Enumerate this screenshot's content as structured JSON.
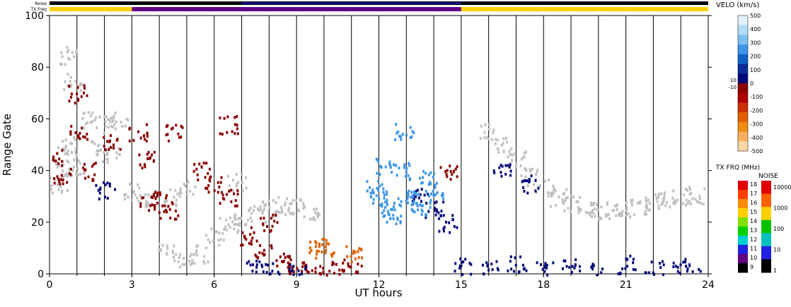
{
  "chart_data": {
    "type": "heatmap",
    "xlabel": "UT hours",
    "ylabel": "Range Gate",
    "xlim": [
      0,
      24
    ],
    "ylim": [
      0,
      100
    ],
    "x_ticks": [
      "0",
      "3",
      "6",
      "9",
      "12",
      "15",
      "18",
      "21",
      "24"
    ],
    "y_ticks": [
      "0",
      "20",
      "40",
      "60",
      "80",
      "100"
    ],
    "hour_gridlines": true,
    "top_bars": {
      "noise_label": "Noise",
      "txfreq_label": "TX Freq",
      "txfreq_segments": [
        {
          "start": 0,
          "end": 3,
          "freq_mhz": 15
        },
        {
          "start": 3,
          "end": 15,
          "freq_mhz": 10
        },
        {
          "start": 15,
          "end": 24,
          "freq_mhz": 15
        }
      ]
    },
    "velocity_scale": {
      "title": "VELO (km/s)",
      "ticks": [
        "500",
        "400",
        "300",
        "200",
        "100",
        "0",
        "-100",
        "-200",
        "-300",
        "-400",
        "-500"
      ],
      "small_ticks": [
        "10",
        "-10"
      ],
      "colors": [
        "#e0f0ff",
        "#b0dcf8",
        "#7cc0f0",
        "#3c96e8",
        "#1060c8",
        "#0a2a98",
        "#000a78",
        "#8c0000",
        "#b00000",
        "#cc3000",
        "#e06000",
        "#f08c10",
        "#f8b060",
        "#fcd8a8"
      ]
    },
    "txfreq_scale": {
      "title": "TX FRQ (MHz)",
      "ticks": [
        "18",
        "17",
        "16",
        "15",
        "14",
        "13",
        "12",
        "11",
        "10",
        "9"
      ],
      "colors": [
        "#e00000",
        "#ff4000",
        "#ff8c00",
        "#ffd000",
        "#80e000",
        "#00d000",
        "#00d0d0",
        "#2020e0",
        "#600080",
        "#000000"
      ]
    },
    "noise_scale": {
      "title": "NOISE",
      "ticks": [
        "10000",
        "1000",
        "100",
        "10",
        "1"
      ],
      "colors": [
        "#e00000",
        "#ff6000",
        "#ffd000",
        "#00c000",
        "#00c0c0",
        "#2020e0",
        "#000000"
      ]
    },
    "scatter_regions": [
      {
        "name": "ground-scatter",
        "color": "#c0c0c0",
        "points": [
          [
            0.3,
            35
          ],
          [
            0.5,
            40
          ],
          [
            0.6,
            50
          ],
          [
            0.8,
            45
          ],
          [
            1.0,
            42
          ],
          [
            1.5,
            60
          ],
          [
            2.0,
            58
          ],
          [
            2.5,
            60
          ],
          [
            1.8,
            50
          ],
          [
            2.2,
            46
          ],
          [
            3.0,
            32
          ],
          [
            3.5,
            30
          ],
          [
            4.5,
            30
          ],
          [
            5.0,
            33
          ],
          [
            4.3,
            10
          ],
          [
            4.8,
            6
          ],
          [
            5.5,
            8
          ],
          [
            6.0,
            15
          ],
          [
            6.5,
            20
          ],
          [
            7.0,
            22
          ],
          [
            7.5,
            24
          ],
          [
            8.0,
            26
          ],
          [
            8.5,
            27
          ],
          [
            9.0,
            26
          ],
          [
            9.5,
            24
          ],
          [
            6.8,
            36
          ],
          [
            16.0,
            55
          ],
          [
            16.5,
            50
          ],
          [
            17.0,
            45
          ],
          [
            17.5,
            38
          ],
          [
            18.0,
            34
          ],
          [
            18.5,
            30
          ],
          [
            19.0,
            28
          ],
          [
            19.5,
            26
          ],
          [
            20.0,
            25
          ],
          [
            20.5,
            25
          ],
          [
            21.0,
            26
          ],
          [
            21.5,
            27
          ],
          [
            22.0,
            28
          ],
          [
            22.5,
            29
          ],
          [
            23.0,
            30
          ],
          [
            23.5,
            31
          ],
          [
            0.7,
            85
          ],
          [
            0.8,
            75
          ]
        ]
      },
      {
        "name": "negative-velocity",
        "color": "#8c0000",
        "points": [
          [
            0.2,
            45
          ],
          [
            0.4,
            38
          ],
          [
            1.0,
            55
          ],
          [
            1.5,
            40
          ],
          [
            2.2,
            52
          ],
          [
            3.2,
            55
          ],
          [
            3.5,
            45
          ],
          [
            3.6,
            28
          ],
          [
            4.0,
            30
          ],
          [
            4.3,
            25
          ],
          [
            4.5,
            55
          ],
          [
            5.5,
            40
          ],
          [
            6.0,
            35
          ],
          [
            6.5,
            30
          ],
          [
            7.2,
            15
          ],
          [
            7.8,
            10
          ],
          [
            8.5,
            5
          ],
          [
            9.0,
            3
          ],
          [
            9.5,
            2
          ],
          [
            10.0,
            2
          ],
          [
            10.5,
            3
          ],
          [
            11.0,
            1
          ],
          [
            14.5,
            40
          ],
          [
            1.0,
            70
          ],
          [
            6.5,
            58
          ],
          [
            8.0,
            20
          ]
        ]
      },
      {
        "name": "positive-velocity",
        "color": "#000a78",
        "points": [
          [
            2.0,
            33
          ],
          [
            7.5,
            2
          ],
          [
            8.0,
            1
          ],
          [
            9.0,
            1
          ],
          [
            13.5,
            30
          ],
          [
            14.0,
            25
          ],
          [
            14.5,
            20
          ],
          [
            15.0,
            3
          ],
          [
            16.0,
            2
          ],
          [
            17.0,
            4
          ],
          [
            18.0,
            2
          ],
          [
            19.0,
            3
          ],
          [
            20.0,
            1
          ],
          [
            21.0,
            4
          ],
          [
            22.0,
            2
          ],
          [
            23.0,
            3
          ],
          [
            23.5,
            1
          ],
          [
            16.5,
            40
          ],
          [
            17.5,
            35
          ]
        ]
      },
      {
        "name": "fast-positive-velocity",
        "color": "#3c96e8",
        "points": [
          [
            11.8,
            35
          ],
          [
            12.0,
            30
          ],
          [
            12.3,
            25
          ],
          [
            12.5,
            22
          ],
          [
            12.8,
            40
          ],
          [
            13.0,
            28
          ],
          [
            13.3,
            30
          ],
          [
            13.5,
            25
          ],
          [
            13.8,
            38
          ],
          [
            14.0,
            32
          ],
          [
            12.2,
            42
          ],
          [
            12.9,
            55
          ]
        ]
      },
      {
        "name": "fast-negative-velocity",
        "color": "#e06000",
        "points": [
          [
            9.7,
            12
          ],
          [
            10.0,
            10
          ],
          [
            11.0,
            8
          ]
        ]
      }
    ]
  }
}
